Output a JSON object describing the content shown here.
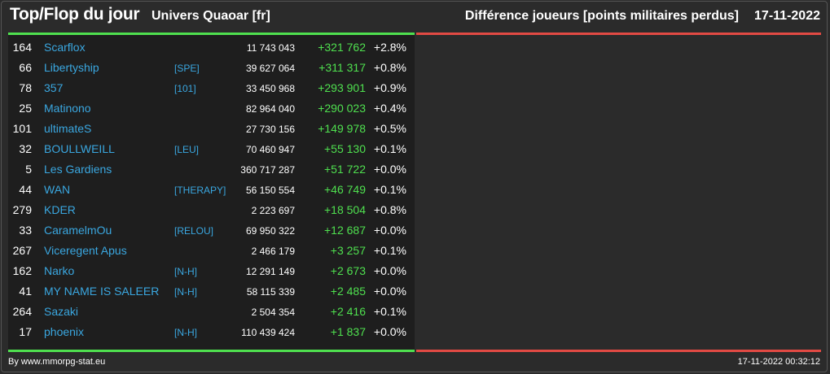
{
  "header": {
    "title": "Top/Flop du jour",
    "universe": "Univers Quaoar [fr]",
    "metric": "Différence joueurs [points militaires perdus]",
    "date": "17-11-2022"
  },
  "colors": {
    "background": "#2b2b2b",
    "panel": "#1e1e1e",
    "name_link": "#3aa7e0",
    "positive": "#4fe04f",
    "top_bar": "#4fe04f",
    "flop_bar": "#e24a44"
  },
  "top_rows": [
    {
      "rank": "164",
      "name": "Scarflox",
      "ally": "",
      "points": "11 743 043",
      "diff": "+321 762",
      "pct": "+2.8%"
    },
    {
      "rank": "66",
      "name": "Libertyship",
      "ally": "[SPE]",
      "points": "39 627 064",
      "diff": "+311 317",
      "pct": "+0.8%"
    },
    {
      "rank": "78",
      "name": "357",
      "ally": "[101]",
      "points": "33 450 968",
      "diff": "+293 901",
      "pct": "+0.9%"
    },
    {
      "rank": "25",
      "name": "Matinono",
      "ally": "",
      "points": "82 964 040",
      "diff": "+290 023",
      "pct": "+0.4%"
    },
    {
      "rank": "101",
      "name": "ultimateS",
      "ally": "",
      "points": "27 730 156",
      "diff": "+149 978",
      "pct": "+0.5%"
    },
    {
      "rank": "32",
      "name": "BOULLWEILL",
      "ally": "[LEU]",
      "points": "70 460 947",
      "diff": "+55 130",
      "pct": "+0.1%"
    },
    {
      "rank": "5",
      "name": "Les Gardiens",
      "ally": "",
      "points": "360 717 287",
      "diff": "+51 722",
      "pct": "+0.0%"
    },
    {
      "rank": "44",
      "name": "WAN",
      "ally": "[THERAPY]",
      "points": "56 150 554",
      "diff": "+46 749",
      "pct": "+0.1%"
    },
    {
      "rank": "279",
      "name": "KDER",
      "ally": "",
      "points": "2 223 697",
      "diff": "+18 504",
      "pct": "+0.8%"
    },
    {
      "rank": "33",
      "name": "CaramelmOu",
      "ally": "[RELOU]",
      "points": "69 950 322",
      "diff": "+12 687",
      "pct": "+0.0%"
    },
    {
      "rank": "267",
      "name": "Viceregent Apus",
      "ally": "",
      "points": "2 466 179",
      "diff": "+3 257",
      "pct": "+0.1%"
    },
    {
      "rank": "162",
      "name": "Narko",
      "ally": "[N-H]",
      "points": "12 291 149",
      "diff": "+2 673",
      "pct": "+0.0%"
    },
    {
      "rank": "41",
      "name": "MY NAME IS SALEER",
      "ally": "[N-H]",
      "points": "58 115 339",
      "diff": "+2 485",
      "pct": "+0.0%"
    },
    {
      "rank": "264",
      "name": "Sazaki",
      "ally": "",
      "points": "2 504 354",
      "diff": "+2 416",
      "pct": "+0.1%"
    },
    {
      "rank": "17",
      "name": "phoenix",
      "ally": "[N-H]",
      "points": "110 439 424",
      "diff": "+1 837",
      "pct": "+0.0%"
    }
  ],
  "footer": {
    "source": "By www.mmorpg-stat.eu",
    "timestamp": "17-11-2022 00:32:12"
  }
}
